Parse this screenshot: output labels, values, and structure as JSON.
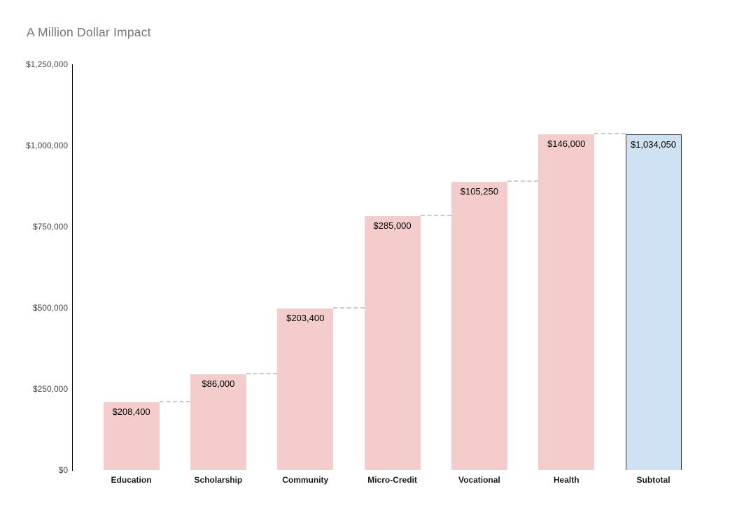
{
  "chart_data": {
    "type": "waterfall",
    "title": "A Million Dollar Impact",
    "categories": [
      "Education",
      "Scholarship",
      "Community",
      "Micro-Credit",
      "Vocational",
      "Health",
      "Subtotal"
    ],
    "bars": [
      {
        "category": "Education",
        "value": 208400,
        "label": "$208,400",
        "role": "increase"
      },
      {
        "category": "Scholarship",
        "value": 86000,
        "label": "$86,000",
        "role": "increase"
      },
      {
        "category": "Community",
        "value": 203400,
        "label": "$203,400",
        "role": "increase"
      },
      {
        "category": "Micro-Credit",
        "value": 285000,
        "label": "$285,000",
        "role": "increase"
      },
      {
        "category": "Vocational",
        "value": 105250,
        "label": "$105,250",
        "role": "increase"
      },
      {
        "category": "Health",
        "value": 146000,
        "label": "$146,000",
        "role": "increase"
      },
      {
        "category": "Subtotal",
        "value": 1034050,
        "label": "$1,034,050",
        "role": "subtotal"
      }
    ],
    "y_axis": {
      "min": 0,
      "max": 1250000,
      "ticks": [
        {
          "value": 0,
          "label": "$0"
        },
        {
          "value": 250000,
          "label": "$250,000"
        },
        {
          "value": 500000,
          "label": "$500,000"
        },
        {
          "value": 750000,
          "label": "$750,000"
        },
        {
          "value": 1000000,
          "label": "$1,000,000"
        },
        {
          "value": 1250000,
          "label": "$1,250,000"
        }
      ]
    },
    "xlabel": "",
    "ylabel": "",
    "legend_position": "none",
    "gridlines": false,
    "colors": {
      "increase_fill": "#f4cccc",
      "subtotal_fill": "#cfe2f3",
      "subtotal_border": "#333333",
      "connector": "#c9c9c9",
      "title_text": "#757575",
      "axis_line": "#000000",
      "tick_text": "#444444",
      "category_text": "#1a1a1a",
      "value_text": "#000000"
    }
  }
}
